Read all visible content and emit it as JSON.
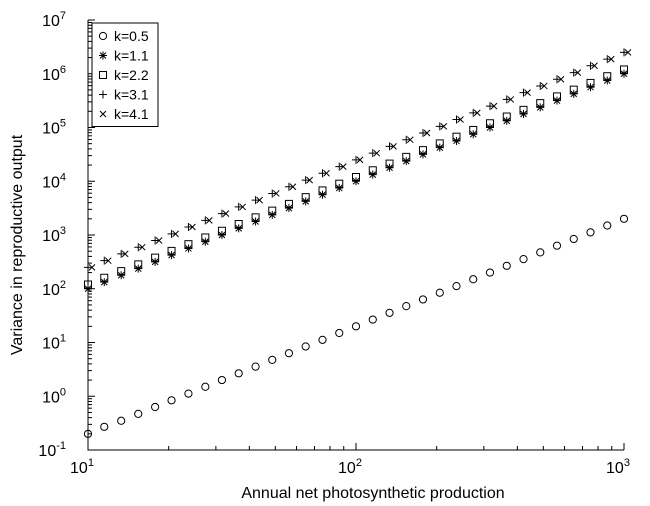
{
  "chart_data": {
    "type": "scatter",
    "title": "",
    "xlabel": "Annual net photosynthetic production",
    "ylabel": "Variance in reproductive output",
    "xscale": "log",
    "yscale": "log",
    "xlim": [
      10,
      1000
    ],
    "ylim": [
      0.1,
      10000000
    ],
    "x_ticks": [
      {
        "value": 10,
        "base": "10",
        "exp": "1"
      },
      {
        "value": 100,
        "base": "10",
        "exp": "2"
      },
      {
        "value": 1000,
        "base": "10",
        "exp": "3"
      }
    ],
    "y_ticks": [
      {
        "value": 0.1,
        "base": "10",
        "exp": "-1"
      },
      {
        "value": 1,
        "base": "10",
        "exp": "0"
      },
      {
        "value": 10,
        "base": "10",
        "exp": "1"
      },
      {
        "value": 100,
        "base": "10",
        "exp": "2"
      },
      {
        "value": 1000,
        "base": "10",
        "exp": "3"
      },
      {
        "value": 10000,
        "base": "10",
        "exp": "4"
      },
      {
        "value": 100000,
        "base": "10",
        "exp": "5"
      },
      {
        "value": 1000000,
        "base": "10",
        "exp": "6"
      },
      {
        "value": 10000000,
        "base": "10",
        "exp": "7"
      }
    ],
    "grid": false,
    "legend_position": "top-left",
    "x": [
      10,
      11.5,
      13.3,
      15.4,
      17.8,
      20.5,
      23.7,
      27.4,
      31.6,
      36.5,
      42.2,
      48.7,
      56.2,
      64.9,
      75,
      86.6,
      100,
      115.5,
      133.4,
      154,
      177.8,
      205.4,
      237.1,
      273.8,
      316.2,
      365.2,
      421.7,
      487,
      562.3,
      649.4,
      749.9,
      866,
      1000
    ],
    "series": [
      {
        "name": "k=0.5",
        "marker": "circle",
        "values": [
          0.2,
          0.27,
          0.35,
          0.47,
          0.63,
          0.84,
          1.12,
          1.5,
          2,
          2.67,
          3.56,
          4.75,
          6.33,
          8.43,
          11.2,
          15,
          20,
          26.7,
          35.6,
          47.5,
          63.3,
          84.3,
          112,
          150,
          200,
          267,
          356,
          475,
          633,
          843,
          1120,
          1500,
          2000
        ]
      },
      {
        "name": "k=1.1",
        "marker": "asterisk",
        "values": [
          100,
          133,
          178,
          237,
          316,
          422,
          562,
          750,
          1000,
          1330,
          1780,
          2370,
          3160,
          4220,
          5620,
          7500,
          10000,
          13300,
          17800,
          23700,
          31600,
          42200,
          56200,
          75000,
          100000,
          133000,
          178000,
          237000,
          316000,
          422000,
          562000,
          750000,
          1000000
        ]
      },
      {
        "name": "k=2.2",
        "marker": "square",
        "values": [
          120,
          160,
          213,
          284,
          379,
          506,
          675,
          900,
          1200,
          1600,
          2130,
          2840,
          3790,
          5060,
          6750,
          9000,
          12000,
          16000,
          21300,
          28400,
          37900,
          50600,
          67500,
          90000,
          120000,
          160000,
          213000,
          284000,
          379000,
          506000,
          675000,
          900000,
          1200000
        ]
      },
      {
        "name": "k=3.1",
        "marker": "plus",
        "values": [
          250,
          333,
          445,
          593,
          791,
          1050,
          1410,
          1870,
          2500,
          3330,
          4450,
          5930,
          7910,
          10500,
          14100,
          18700,
          25000,
          33300,
          44500,
          59300,
          79100,
          105000,
          141000,
          187000,
          250000,
          333000,
          445000,
          593000,
          791000,
          1050000,
          1410000,
          1870000,
          2500000
        ]
      },
      {
        "name": "k=4.1",
        "marker": "cross",
        "values": [
          250,
          333,
          445,
          593,
          791,
          1050,
          1410,
          1870,
          2500,
          3330,
          4450,
          5930,
          7910,
          10500,
          14100,
          18700,
          25000,
          33300,
          44500,
          59300,
          79100,
          105000,
          141000,
          187000,
          250000,
          333000,
          445000,
          593000,
          791000,
          1050000,
          1410000,
          1870000,
          2500000
        ]
      }
    ]
  }
}
